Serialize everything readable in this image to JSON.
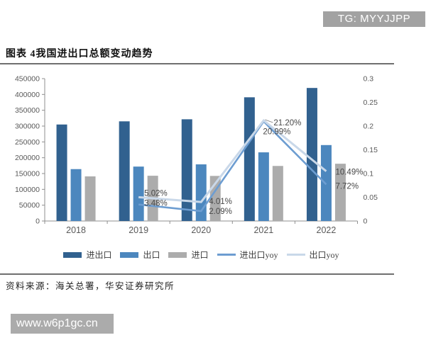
{
  "badge": {
    "text": "TG: MYYJJPP",
    "bg_color": "#a2a2a2"
  },
  "figure_title": "图表 4我国进出口总额变动趋势",
  "source_note": "资料来源：海关总署，华安证券研究所",
  "watermark": {
    "text": "www.w6p1gc.cn",
    "bg_color": "#ababab"
  },
  "chart_data": {
    "type": "bar+line",
    "title": "",
    "categories": [
      "2018",
      "2019",
      "2020",
      "2021",
      "2022"
    ],
    "bar_series": [
      {
        "name": "进出口",
        "color": "#31618F",
        "values": [
          305000,
          315000,
          321500,
          391000,
          420500
        ]
      },
      {
        "name": "出口",
        "color": "#4C87BE",
        "values": [
          164000,
          172000,
          179000,
          217000,
          240000
        ]
      },
      {
        "name": "进口",
        "color": "#ACACAC",
        "values": [
          141000,
          143000,
          142500,
          174000,
          181000
        ]
      }
    ],
    "line_series": [
      {
        "name": "进出口yoy",
        "color": "#6D9DD1",
        "values_pct": [
          null,
          3.48,
          2.09,
          20.99,
          7.72
        ]
      },
      {
        "name": "出口yoy",
        "color": "#C9D8E9",
        "values_pct": [
          null,
          5.02,
          4.01,
          21.2,
          10.49
        ]
      }
    ],
    "left_axis": {
      "min": 0,
      "max": 450000,
      "step": 50000
    },
    "right_axis": {
      "min": 0,
      "max": 0.3,
      "step": 0.05
    },
    "data_labels": [
      "5.02%",
      "3.48%",
      "4.01%",
      "2.09%",
      "21.20%",
      "20.99%",
      "10.49%",
      "7.72%"
    ],
    "legend_position": "bottom",
    "gridlines": false
  }
}
